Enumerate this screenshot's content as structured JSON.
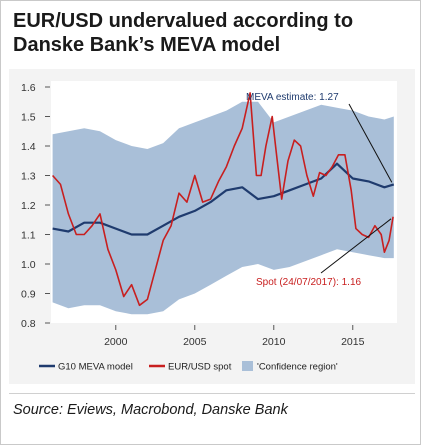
{
  "title_lines": [
    "EUR/USD undervalued according to",
    "Danske Bank’s MEVA model"
  ],
  "source": "Source: Eviews, Macrobond, Danske Bank",
  "colors": {
    "meva": "#1f3b6e",
    "spot": "#c81f1f",
    "band": "#a9bfd8",
    "panel": "#f3f3f3"
  },
  "chart_data": {
    "type": "line",
    "xlim": [
      1995.9,
      2017.8
    ],
    "ylim": [
      0.8,
      1.6
    ],
    "y_ticks": [
      "0.8",
      "0.9",
      "1.0",
      "1.1",
      "1.2",
      "1.3",
      "1.4",
      "1.5",
      "1.6"
    ],
    "x_ticks": [
      "2000",
      "2005",
      "2010",
      "2015"
    ],
    "legend": {
      "position": "bottom",
      "items": [
        "G10 MEVA model",
        "EUR/USD spot",
        "'Confidence region'"
      ]
    },
    "annotations": [
      {
        "text": "MEVA estimate: 1.27",
        "color": "#1f3b6e"
      },
      {
        "text": "Spot (24/07/2017): 1.16",
        "color": "#c81f1f"
      }
    ],
    "series": [
      {
        "name": "G10 MEVA model",
        "x": [
          1996,
          1997,
          1998,
          1999,
          2000,
          2001,
          2002,
          2003,
          2004,
          2005,
          2006,
          2007,
          2008,
          2009,
          2010,
          2011,
          2012,
          2013,
          2014,
          2015,
          2016,
          2017,
          2017.6
        ],
        "y": [
          1.12,
          1.11,
          1.14,
          1.14,
          1.12,
          1.1,
          1.1,
          1.13,
          1.16,
          1.18,
          1.21,
          1.25,
          1.26,
          1.22,
          1.23,
          1.25,
          1.27,
          1.29,
          1.34,
          1.29,
          1.28,
          1.26,
          1.27
        ]
      },
      {
        "name": "EUR/USD spot",
        "x": [
          1996,
          1996.5,
          1997,
          1997.5,
          1998,
          1998.5,
          1999,
          1999.5,
          2000,
          2000.5,
          2001,
          2001.5,
          2002,
          2002.5,
          2003,
          2003.5,
          2004,
          2004.5,
          2005,
          2005.5,
          2006,
          2006.5,
          2007,
          2007.5,
          2008,
          2008.5,
          2008.9,
          2009.2,
          2009.5,
          2009.9,
          2010.2,
          2010.5,
          2010.9,
          2011.3,
          2011.7,
          2012.1,
          2012.5,
          2012.9,
          2013.3,
          2013.7,
          2014.1,
          2014.5,
          2014.9,
          2015.2,
          2015.6,
          2016.0,
          2016.4,
          2016.8,
          2017.0,
          2017.3,
          2017.55
        ],
        "y": [
          1.3,
          1.27,
          1.17,
          1.1,
          1.1,
          1.13,
          1.17,
          1.05,
          0.98,
          0.89,
          0.93,
          0.86,
          0.88,
          0.98,
          1.08,
          1.13,
          1.24,
          1.21,
          1.3,
          1.21,
          1.22,
          1.28,
          1.33,
          1.4,
          1.46,
          1.58,
          1.3,
          1.3,
          1.4,
          1.5,
          1.36,
          1.22,
          1.35,
          1.42,
          1.4,
          1.3,
          1.23,
          1.31,
          1.3,
          1.33,
          1.37,
          1.37,
          1.25,
          1.12,
          1.1,
          1.09,
          1.13,
          1.1,
          1.04,
          1.08,
          1.16
        ]
      },
      {
        "name": "'Confidence region'",
        "x": [
          1996,
          1997,
          1998,
          1999,
          2000,
          2001,
          2002,
          2003,
          2004,
          2005,
          2006,
          2007,
          2008,
          2009,
          2010,
          2011,
          2012,
          2013,
          2014,
          2015,
          2016,
          2017,
          2017.6
        ],
        "upper": [
          1.44,
          1.45,
          1.46,
          1.45,
          1.42,
          1.4,
          1.39,
          1.41,
          1.46,
          1.48,
          1.5,
          1.52,
          1.55,
          1.55,
          1.48,
          1.5,
          1.52,
          1.54,
          1.53,
          1.52,
          1.5,
          1.49,
          1.5
        ],
        "lower": [
          0.87,
          0.85,
          0.86,
          0.86,
          0.84,
          0.83,
          0.83,
          0.84,
          0.88,
          0.9,
          0.93,
          0.96,
          0.99,
          1.0,
          0.98,
          0.99,
          1.01,
          1.03,
          1.05,
          1.04,
          1.03,
          1.02,
          1.02
        ]
      }
    ]
  }
}
